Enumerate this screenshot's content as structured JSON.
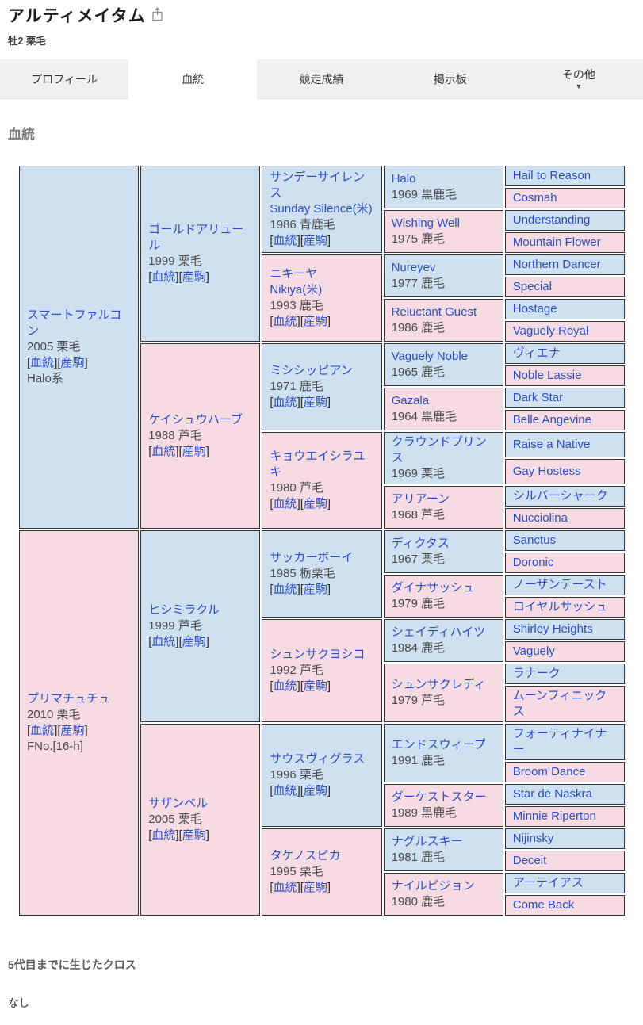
{
  "header": {
    "title": "アルティメイタム",
    "subtitle": "牡2 栗毛"
  },
  "tabs": [
    {
      "label": "プロフィール",
      "active": false
    },
    {
      "label": "血統",
      "active": true
    },
    {
      "label": "競走成績",
      "active": false
    },
    {
      "label": "掲示板",
      "active": false
    },
    {
      "label": "その他",
      "active": false,
      "dropdown": "▼"
    }
  ],
  "section_title": "血統",
  "labels": {
    "open": "[",
    "middle": "][",
    "close": "]",
    "blood": "血統",
    "offspring": "産駒"
  },
  "colors": {
    "male_bg": "#cfe1f0",
    "female_bg": "#f7dbe3",
    "male_border": "#88aed6",
    "female_border": "#dfa2b7",
    "link": "#2b4dc5"
  },
  "pedigree": {
    "gen1": [
      {
        "name": "スマートファルコン",
        "year_coat": "2005 栗毛",
        "links": true,
        "extra": "Halo系"
      },
      {
        "name": "プリマチュチュ",
        "year_coat": "2010 栗毛",
        "links": true,
        "extra": "FNo.[16-h]"
      }
    ],
    "gen2": [
      {
        "name": "ゴールドアリュール",
        "year_coat": "1999 栗毛",
        "links": true
      },
      {
        "name": "ケイシュウハーブ",
        "year_coat": "1988 芦毛",
        "links": true
      },
      {
        "name": "ヒシミラクル",
        "year_coat": "1999 芦毛",
        "links": true
      },
      {
        "name": "サザンベル",
        "year_coat": "2005 栗毛",
        "links": true
      }
    ],
    "gen3": [
      {
        "name": "サンデーサイレンス",
        "sub": "Sunday Silence(米)",
        "year_coat": "1986 青鹿毛",
        "links": true
      },
      {
        "name": "ニキーヤ",
        "sub": "Nikiya(米)",
        "year_coat": "1993 鹿毛",
        "links": true
      },
      {
        "name": "ミシシッピアン",
        "year_coat": "1971 鹿毛",
        "links": true
      },
      {
        "name": "キョウエイシラユキ",
        "year_coat": "1980 芦毛",
        "links": true
      },
      {
        "name": "サッカーボーイ",
        "year_coat": "1985 栃栗毛",
        "links": true
      },
      {
        "name": "シュンサクヨシコ",
        "year_coat": "1992 芦毛",
        "links": true
      },
      {
        "name": "サウスヴィグラス",
        "year_coat": "1996 栗毛",
        "links": true
      },
      {
        "name": "タケノスピカ",
        "year_coat": "1995 栗毛",
        "links": true
      }
    ],
    "gen4": [
      {
        "name": "Halo",
        "year_coat": "1969 黒鹿毛"
      },
      {
        "name": "Wishing Well",
        "year_coat": "1975 鹿毛"
      },
      {
        "name": "Nureyev",
        "year_coat": "1977 鹿毛"
      },
      {
        "name": "Reluctant Guest",
        "year_coat": "1986 鹿毛"
      },
      {
        "name": "Vaguely Noble",
        "year_coat": "1965 鹿毛"
      },
      {
        "name": "Gazala",
        "year_coat": "1964 黒鹿毛"
      },
      {
        "name": "クラウンドプリンス",
        "year_coat": "1969 栗毛"
      },
      {
        "name": "アリアーン",
        "year_coat": "1968 芦毛"
      },
      {
        "name": "ディクタス",
        "year_coat": "1967 栗毛"
      },
      {
        "name": "ダイナサッシュ",
        "year_coat": "1979 鹿毛"
      },
      {
        "name": "シェイディハイツ",
        "year_coat": "1984 鹿毛"
      },
      {
        "name": "シュンサクレディ",
        "year_coat": "1979 芦毛"
      },
      {
        "name": "エンドスウィープ",
        "year_coat": "1991 鹿毛"
      },
      {
        "name": "ダーケストスター",
        "year_coat": "1989 黒鹿毛"
      },
      {
        "name": "ナグルスキー",
        "year_coat": "1981 鹿毛"
      },
      {
        "name": "ナイルビジョン",
        "year_coat": "1980 鹿毛"
      }
    ],
    "gen5": [
      "Hail to Reason",
      "Cosmah",
      "Understanding",
      "Mountain Flower",
      "Northern Dancer",
      "Special",
      "Hostage",
      "Vaguely Royal",
      "ヴィエナ",
      "Noble Lassie",
      "Dark Star",
      "Belle Angevine",
      "Raise a Native",
      "Gay Hostess",
      "シルバーシャーク",
      "Nucciolina",
      "Sanctus",
      "Doronic",
      "ノーザンテースト",
      "ロイヤルサッシュ",
      "Shirley Heights",
      "Vaguely",
      "ラナーク",
      "ムーンフィニックス",
      "フォーティナイナー",
      "Broom Dance",
      "Star de Naskra",
      "Minnie Riperton",
      "Nijinsky",
      "Deceit",
      "アーテイアス",
      "Come Back"
    ]
  },
  "footer": {
    "cross_title": "5代目までに生じたクロス",
    "cross_value": "なし"
  }
}
